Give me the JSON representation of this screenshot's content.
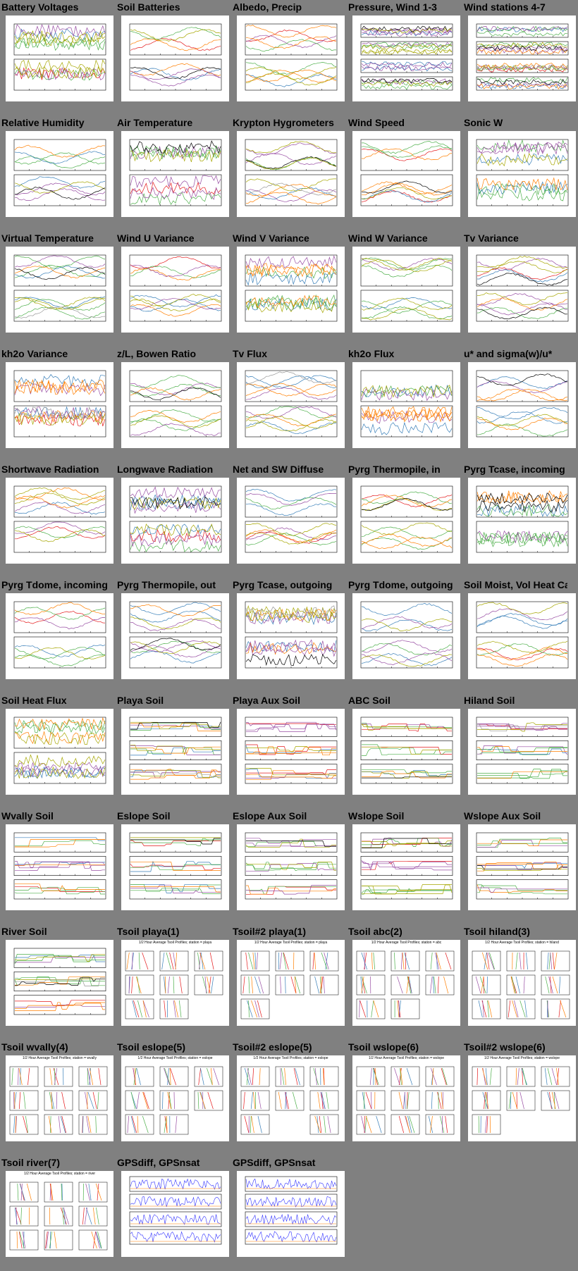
{
  "page": {
    "background": "#808080"
  },
  "thumbnails": [
    {
      "title": "Battery Voltages",
      "kind": "ts"
    },
    {
      "title": "Soil Batteries",
      "kind": "ts"
    },
    {
      "title": "Albedo, Precip",
      "kind": "ts"
    },
    {
      "title": "Pressure, Wind 1-3",
      "kind": "ts4"
    },
    {
      "title": "Wind stations 4-7",
      "kind": "ts4"
    },
    {
      "title": "Relative Humidity",
      "kind": "ts"
    },
    {
      "title": "Air Temperature",
      "kind": "ts"
    },
    {
      "title": "Krypton Hygrometers",
      "kind": "ts"
    },
    {
      "title": "Wind Speed",
      "kind": "ts"
    },
    {
      "title": "Sonic W",
      "kind": "ts"
    },
    {
      "title": "Virtual Temperature",
      "kind": "ts"
    },
    {
      "title": "Wind U Variance",
      "kind": "ts"
    },
    {
      "title": "Wind V Variance",
      "kind": "ts"
    },
    {
      "title": "Wind W Variance",
      "kind": "ts"
    },
    {
      "title": "Tv Variance",
      "kind": "ts"
    },
    {
      "title": "kh2o Variance",
      "kind": "ts"
    },
    {
      "title": "z/L, Bowen Ratio",
      "kind": "ts"
    },
    {
      "title": "Tv Flux",
      "kind": "ts"
    },
    {
      "title": "kh2o Flux",
      "kind": "ts"
    },
    {
      "title": "u* and sigma(w)/u*",
      "kind": "ts"
    },
    {
      "title": "Shortwave Radiation",
      "kind": "ts"
    },
    {
      "title": "Longwave Radiation",
      "kind": "ts"
    },
    {
      "title": "Net and SW Diffuse",
      "kind": "ts"
    },
    {
      "title": "Pyrg Thermopile, in",
      "kind": "ts"
    },
    {
      "title": "Pyrg Tcase, incoming",
      "kind": "ts"
    },
    {
      "title": "Pyrg Tdome, incoming",
      "kind": "ts"
    },
    {
      "title": "Pyrg Thermopile, out",
      "kind": "ts"
    },
    {
      "title": "Pyrg Tcase, outgoing",
      "kind": "ts"
    },
    {
      "title": "Pyrg Tdome, outgoing",
      "kind": "ts"
    },
    {
      "title": "Soil Moist, Vol Heat Cap",
      "kind": "ts"
    },
    {
      "title": "Soil Heat Flux",
      "kind": "ts"
    },
    {
      "title": "Playa Soil",
      "kind": "ts3"
    },
    {
      "title": "Playa Aux Soil",
      "kind": "ts3"
    },
    {
      "title": "ABC Soil",
      "kind": "ts3"
    },
    {
      "title": "Hiland Soil",
      "kind": "ts3"
    },
    {
      "title": "Wvally Soil",
      "kind": "ts3"
    },
    {
      "title": "Eslope Soil",
      "kind": "ts3"
    },
    {
      "title": "Eslope Aux Soil",
      "kind": "ts3"
    },
    {
      "title": "Wslope Soil",
      "kind": "ts3"
    },
    {
      "title": "Wslope Aux Soil",
      "kind": "ts3"
    },
    {
      "title": "River Soil",
      "kind": "ts3"
    },
    {
      "title": "Tsoil playa(1)",
      "kind": "grid",
      "heading": "1/2 Hour Average Tsoil Profiles; station = playa"
    },
    {
      "title": "Tsoil#2 playa(1)",
      "kind": "grid",
      "heading": "1/2 Hour Average Tsoil Profiles; station = playa"
    },
    {
      "title": "Tsoil abc(2)",
      "kind": "grid",
      "heading": "1/2 Hour Average Tsoil Profiles; station = abc"
    },
    {
      "title": "Tsoil hiland(3)",
      "kind": "grid",
      "heading": "1/2 Hour Average Tsoil Profiles; station = hiland"
    },
    {
      "title": "Tsoil wvally(4)",
      "kind": "grid",
      "heading": "1/2 Hour Average Tsoil Profiles; station = wvally"
    },
    {
      "title": "Tsoil eslope(5)",
      "kind": "grid",
      "heading": "1/2 Hour Average Tsoil Profiles; station = eslope"
    },
    {
      "title": "Tsoil#2 eslope(5)",
      "kind": "grid",
      "heading": "1/2 Hour Average Tsoil Profiles; station = eslope"
    },
    {
      "title": "Tsoil wslope(6)",
      "kind": "grid",
      "heading": "1/2 Hour Average Tsoil Profiles; station = wslope"
    },
    {
      "title": "Tsoil#2 wslope(6)",
      "kind": "grid",
      "heading": "1/2 Hour Average Tsoil Profiles; station = wslope"
    },
    {
      "title": "Tsoil river(7)",
      "kind": "grid",
      "heading": "1/2 Hour Average Tsoil Profiles; station = river"
    },
    {
      "title": "GPSdiff, GPSnsat",
      "kind": "gps"
    },
    {
      "title": "GPSdiff, GPSnsat",
      "kind": "gps"
    }
  ]
}
